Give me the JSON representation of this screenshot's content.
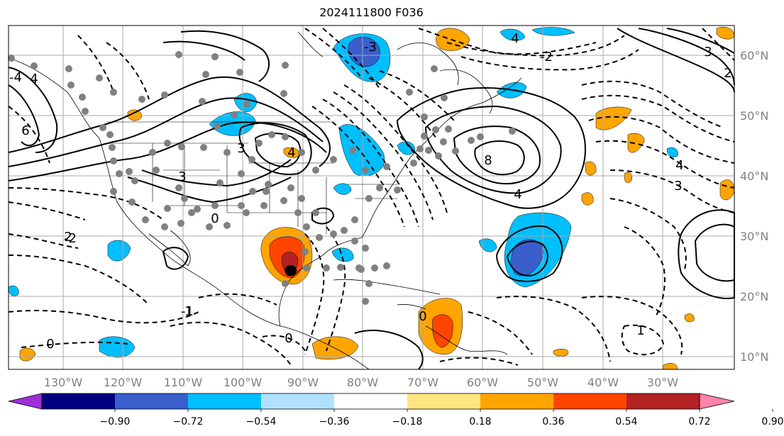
{
  "title": "2024111800 F036",
  "lon_ticks": [
    "130°W",
    "120°W",
    "110°W",
    "100°W",
    "90°W",
    "80°W",
    "70°W",
    "60°W",
    "50°W",
    "40°W",
    "30°W"
  ],
  "lat_ticks": [
    "60°N",
    "50°N",
    "40°N",
    "30°N",
    "20°N",
    "10°N"
  ],
  "colorbar": {
    "colors": [
      "#9b30d9",
      "#000080",
      "#3a5fcd",
      "#00bfff",
      "#b0e2ff",
      "#ffffff",
      "#ffe680",
      "#ffa500",
      "#ff4500",
      "#b22222",
      "#ff82ab"
    ],
    "labels": [
      "−0.90",
      "−0.72",
      "−0.54",
      "−0.36",
      "−0.18",
      "0.18",
      "0.36",
      "0.54",
      "0.72",
      "0.90"
    ]
  },
  "contour_labels": [
    "4",
    "3",
    "2",
    "1",
    "0",
    "-1",
    "-2",
    "-3",
    "-4",
    "8",
    "6"
  ],
  "colors": {
    "solid": "#000000",
    "dashed": "#000000",
    "grid": "#aaaaaa",
    "tick_text": "#808080",
    "dot": "#808080"
  }
}
